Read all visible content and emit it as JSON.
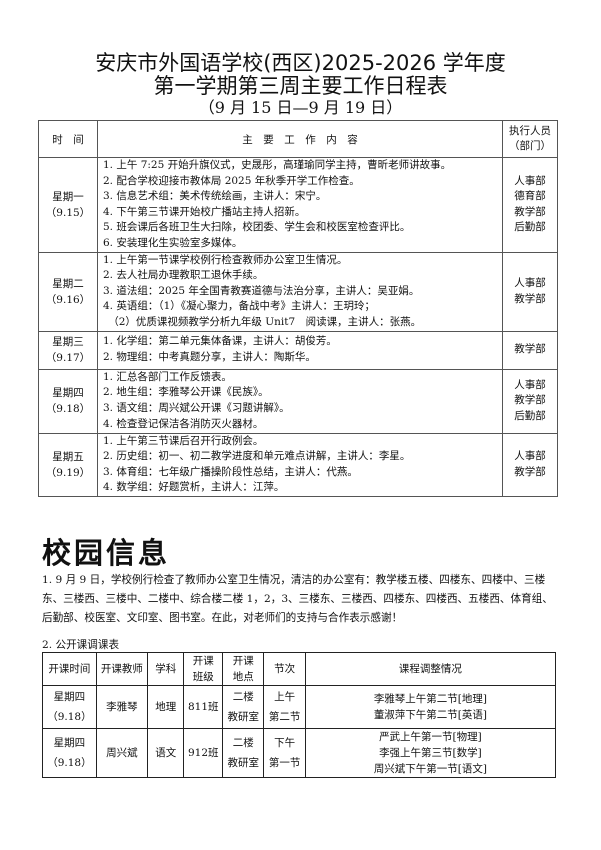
{
  "title": {
    "line1": "安庆市外国语学校(西区)2025-2026 学年度",
    "line2": "第一学期第三周主要工作日程表",
    "line3": "（9 月 15 日—9 月 19 日）"
  },
  "schedule": {
    "headers": {
      "time": "时　间",
      "content": "主　要　工　作　内　容",
      "dept_line1": "执行人员",
      "dept_line2": "（部门）"
    },
    "rows": [
      {
        "day": "星期一",
        "date": "（9.15）",
        "items": [
          "1. 上午 7:25 开始升旗仪式，史晟彤，高瑾瑜同学主持，曹昕老师讲故事。",
          "2. 配合学校迎接市教体局 2025 年秋季开学工作检查。",
          "3. 信息艺术组：美术传统绘画，主讲人：宋宁。",
          "4. 下午第三节课开始校广播站主持人招新。",
          "5. 班会课后各班卫生大扫除，校团委、学生会和校医室检查评比。",
          "6. 安装理化生实验室多媒体。"
        ],
        "depts": [
          "人事部",
          "德育部",
          "教学部",
          "后勤部"
        ]
      },
      {
        "day": "星期二",
        "date": "（9.16）",
        "items": [
          "1. 上午第一节课学校例行检查教师办公室卫生情况。",
          "2. 去人社局办理教职工退休手续。",
          "3. 道法组：2025 年全国青教赛道德与法治分享，主讲人：吴亚娟。",
          "4. 英语组：（1）《凝心聚力，备战中考》主讲人：王玥玲；",
          "　（2）优质课视频教学分析九年级 Unit7　阅读课，主讲人：张燕。"
        ],
        "depts": [
          "人事部",
          "教学部"
        ]
      },
      {
        "day": "星期三",
        "date": "（9.17）",
        "items": [
          "1. 化学组：第二单元集体备课，主讲人：胡俊芳。",
          "2. 物理组：中考真题分享，主讲人：陶斯华。"
        ],
        "depts": [
          "教学部"
        ]
      },
      {
        "day": "星期四",
        "date": "（9.18）",
        "items": [
          "1. 汇总各部门工作反馈表。",
          "2. 地生组：李雅琴公开课《民族》。",
          "3. 语文组：周兴斌公开课《习题讲解》。",
          "4. 检查登记保洁各消防灭火器材。"
        ],
        "depts": [
          "人事部",
          "教学部",
          "后勤部"
        ]
      },
      {
        "day": "星期五",
        "date": "（9.19）",
        "items": [
          "1. 上午第三节课后召开行政例会。",
          "2. 历史组：初一、初二教学进度和单元难点讲解，主讲人：李星。",
          "3. 体育组：七年级广播操阶段性总结，主讲人：代燕。",
          "4. 数学组：好题赏析，主讲人：江萍。"
        ],
        "depts": [
          "人事部",
          "教学部"
        ]
      }
    ]
  },
  "campus": {
    "heading": "校园信息",
    "paragraph": "1. 9 月 9 日，学校例行检查了教师办公室卫生情况，清洁的办公室有：教学楼五楼、四楼东、四楼中、三楼东、三楼西、三楼中、二楼中、综合楼二楼 1，2，3、三楼东、三楼西、四楼东、四楼西、五楼西、体育组、后勤部、校医室、文印室、图书室。在此，对老师们的支持与合作表示感谢！",
    "subheading": "2. 公开课调课表",
    "table": {
      "headers": [
        "开课时间",
        "开课教师",
        "学科",
        "开课\n班级",
        "开课\n地点",
        "节次",
        "课程调整情况"
      ],
      "rows": [
        {
          "time": "星期四\n（9.18）",
          "teacher": "李雅琴",
          "subject": "地理",
          "class": "811班",
          "place": "二楼\n教研室",
          "period": "上午\n第二节",
          "adjust": [
            "李雅琴上午第二节[地理]",
            "董淑萍下午第二节[英语]"
          ]
        },
        {
          "time": "星期四\n（9.18）",
          "teacher": "周兴斌",
          "subject": "语文",
          "class": "912班",
          "place": "二楼\n教研室",
          "period": "下午\n第一节",
          "adjust": [
            "严武上午第一节[物理]",
            "李强上午第三节[数学]",
            "周兴斌下午第一节[语文]"
          ]
        }
      ]
    }
  }
}
